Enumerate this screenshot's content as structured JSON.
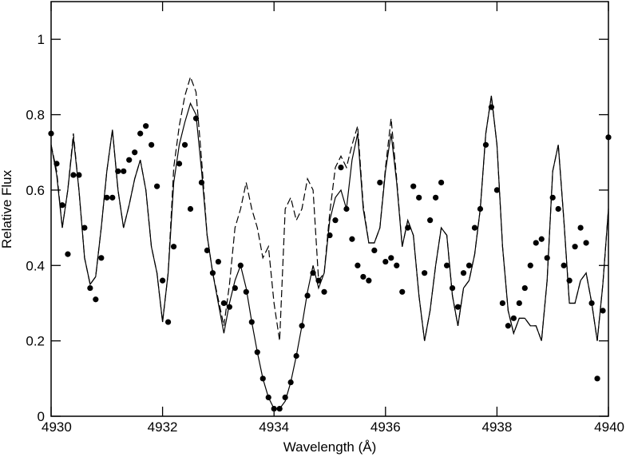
{
  "chart_data": {
    "type": "line",
    "xlabel": "Wavelength (Å)",
    "ylabel": "Relative Flux",
    "xlim": [
      4930,
      4940
    ],
    "ylim": [
      0,
      1.1
    ],
    "xticks": [
      4930,
      4932,
      4934,
      4936,
      4938,
      4940
    ],
    "yticks": [
      0,
      0.2,
      0.4,
      0.6,
      0.8,
      1
    ],
    "x": [
      4930.0,
      4930.1,
      4930.2,
      4930.3,
      4930.4,
      4930.5,
      4930.6,
      4930.7,
      4930.8,
      4930.9,
      4931.0,
      4931.1,
      4931.2,
      4931.3,
      4931.4,
      4931.5,
      4931.6,
      4931.7,
      4931.8,
      4931.9,
      4932.0,
      4932.1,
      4932.2,
      4932.3,
      4932.4,
      4932.5,
      4932.6,
      4932.7,
      4932.8,
      4932.9,
      4933.0,
      4933.1,
      4933.2,
      4933.3,
      4933.4,
      4933.5,
      4933.6,
      4933.7,
      4933.8,
      4933.9,
      4934.0,
      4934.1,
      4934.2,
      4934.3,
      4934.4,
      4934.5,
      4934.6,
      4934.7,
      4934.8,
      4934.9,
      4935.0,
      4935.1,
      4935.2,
      4935.3,
      4935.4,
      4935.5,
      4935.6,
      4935.7,
      4935.8,
      4935.9,
      4936.0,
      4936.1,
      4936.2,
      4936.3,
      4936.4,
      4936.5,
      4936.6,
      4936.7,
      4936.8,
      4936.9,
      4937.0,
      4937.1,
      4937.2,
      4937.3,
      4937.4,
      4937.5,
      4937.6,
      4937.7,
      4937.8,
      4937.9,
      4938.0,
      4938.1,
      4938.2,
      4938.3,
      4938.4,
      4938.5,
      4938.6,
      4938.7,
      4938.8,
      4938.9,
      4939.0,
      4939.1,
      4939.2,
      4939.3,
      4939.4,
      4939.5,
      4939.6,
      4939.7,
      4939.8,
      4939.9,
      4940.0
    ],
    "series": [
      {
        "kind": "scatter",
        "color": "#000000",
        "values": [
          0.75,
          0.67,
          0.56,
          0.43,
          0.64,
          0.64,
          0.5,
          0.34,
          0.31,
          0.42,
          0.58,
          0.58,
          0.65,
          0.65,
          0.68,
          0.7,
          0.75,
          0.77,
          0.72,
          0.61,
          0.36,
          0.25,
          0.45,
          0.67,
          0.72,
          0.55,
          0.79,
          0.62,
          0.44,
          0.38,
          0.41,
          0.3,
          0.29,
          0.34,
          0.4,
          0.33,
          0.25,
          0.17,
          0.1,
          0.05,
          0.02,
          0.02,
          0.05,
          0.09,
          0.16,
          0.24,
          0.32,
          0.38,
          0.36,
          0.33,
          0.48,
          0.52,
          0.66,
          0.55,
          0.47,
          0.4,
          0.37,
          0.36,
          0.44,
          0.62,
          0.41,
          0.42,
          0.4,
          0.33,
          0.5,
          0.61,
          0.58,
          0.38,
          0.52,
          0.58,
          0.62,
          0.4,
          0.34,
          0.29,
          0.38,
          0.4,
          0.5,
          0.55,
          0.72,
          0.82,
          0.6,
          0.3,
          0.24,
          0.26,
          0.3,
          0.34,
          0.4,
          0.46,
          0.47,
          0.42,
          0.58,
          0.55,
          0.4,
          0.36,
          0.45,
          0.5,
          0.46,
          0.3,
          0.1,
          0.28,
          0.74
        ]
      },
      {
        "kind": "solid",
        "color": "#000000",
        "values": [
          0.72,
          0.64,
          0.5,
          0.6,
          0.74,
          0.6,
          0.42,
          0.35,
          0.37,
          0.5,
          0.65,
          0.76,
          0.6,
          0.5,
          0.56,
          0.63,
          0.68,
          0.6,
          0.45,
          0.38,
          0.25,
          0.38,
          0.62,
          0.72,
          0.78,
          0.83,
          0.8,
          0.65,
          0.48,
          0.38,
          0.3,
          0.22,
          0.3,
          0.36,
          0.4,
          0.34,
          0.25,
          0.17,
          0.1,
          0.05,
          0.02,
          0.02,
          0.04,
          0.09,
          0.16,
          0.24,
          0.33,
          0.4,
          0.34,
          0.38,
          0.52,
          0.58,
          0.6,
          0.55,
          0.68,
          0.75,
          0.55,
          0.46,
          0.46,
          0.5,
          0.65,
          0.75,
          0.62,
          0.45,
          0.52,
          0.48,
          0.32,
          0.2,
          0.28,
          0.4,
          0.5,
          0.48,
          0.32,
          0.24,
          0.34,
          0.36,
          0.43,
          0.55,
          0.75,
          0.85,
          0.72,
          0.45,
          0.28,
          0.22,
          0.26,
          0.26,
          0.24,
          0.24,
          0.2,
          0.36,
          0.65,
          0.72,
          0.52,
          0.3,
          0.3,
          0.36,
          0.38,
          0.3,
          0.2,
          0.35,
          0.55
        ]
      },
      {
        "kind": "dashed",
        "color": "#000000",
        "values": [
          0.72,
          0.65,
          0.5,
          0.6,
          0.75,
          0.6,
          0.42,
          0.35,
          0.37,
          0.5,
          0.65,
          0.76,
          0.6,
          0.5,
          0.56,
          0.63,
          0.68,
          0.6,
          0.45,
          0.38,
          0.25,
          0.38,
          0.66,
          0.77,
          0.85,
          0.9,
          0.86,
          0.68,
          0.48,
          0.38,
          0.31,
          0.24,
          0.35,
          0.5,
          0.55,
          0.62,
          0.55,
          0.5,
          0.42,
          0.45,
          0.3,
          0.2,
          0.55,
          0.58,
          0.52,
          0.55,
          0.63,
          0.6,
          0.36,
          0.38,
          0.54,
          0.66,
          0.69,
          0.66,
          0.72,
          0.77,
          0.56,
          0.46,
          0.46,
          0.5,
          0.66,
          0.79,
          0.63,
          0.45,
          0.52,
          0.48,
          0.32,
          0.2,
          0.28,
          0.4,
          0.5,
          0.48,
          0.32,
          0.24,
          0.34,
          0.36,
          0.43,
          0.55,
          0.75,
          0.85,
          0.72,
          0.45,
          0.28,
          0.22,
          0.26,
          0.26,
          0.24,
          0.24,
          0.2,
          0.36,
          0.65,
          0.72,
          0.52,
          0.3,
          0.3,
          0.36,
          0.38,
          0.3,
          0.2,
          0.35,
          0.55
        ]
      }
    ]
  }
}
